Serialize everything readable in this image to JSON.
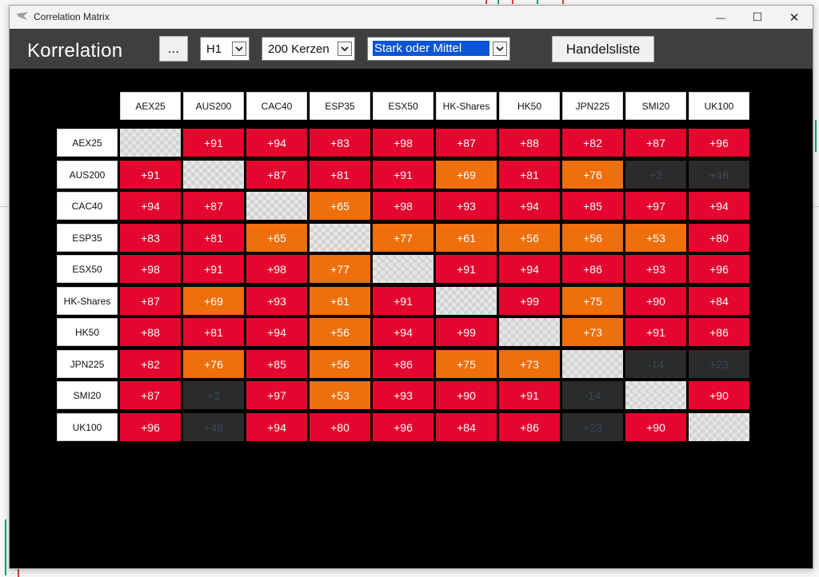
{
  "window": {
    "title": "Correlation Matrix",
    "controls": {
      "minimize": "—",
      "maximize": "☐",
      "close": "✕"
    }
  },
  "toolbar": {
    "title": "Korrelation",
    "more_label": "...",
    "timeframe": {
      "selected": "H1",
      "icon": "chevron-down-icon"
    },
    "candles": {
      "selected": "200 Kerzen",
      "icon": "chevron-down-icon"
    },
    "filter": {
      "selected": "Stark oder Mittel",
      "icon": "chevron-down-icon"
    },
    "trade_list_label": "Handelsliste"
  },
  "matrix": {
    "symbols": [
      "AEX25",
      "AUS200",
      "CAC40",
      "ESP35",
      "ESX50",
      "HK-Shares",
      "HK50",
      "JPN225",
      "SMI20",
      "UK100"
    ],
    "values": [
      [
        "",
        "+91",
        "+94",
        "+83",
        "+98",
        "+87",
        "+88",
        "+82",
        "+87",
        "+96"
      ],
      [
        "+91",
        "",
        "+87",
        "+81",
        "+91",
        "+69",
        "+81",
        "+76",
        "+2",
        "+48"
      ],
      [
        "+94",
        "+87",
        "",
        "+65",
        "+98",
        "+93",
        "+94",
        "+85",
        "+97",
        "+94"
      ],
      [
        "+83",
        "+81",
        "+65",
        "",
        "+77",
        "+61",
        "+56",
        "+56",
        "+53",
        "+80"
      ],
      [
        "+98",
        "+91",
        "+98",
        "+77",
        "",
        "+91",
        "+94",
        "+86",
        "+93",
        "+96"
      ],
      [
        "+87",
        "+69",
        "+93",
        "+61",
        "+91",
        "",
        "+99",
        "+75",
        "+90",
        "+84"
      ],
      [
        "+88",
        "+81",
        "+94",
        "+56",
        "+94",
        "+99",
        "",
        "+73",
        "+91",
        "+86"
      ],
      [
        "+82",
        "+76",
        "+85",
        "+56",
        "+86",
        "+75",
        "+73",
        "",
        "-14",
        "+23"
      ],
      [
        "+87",
        "+2",
        "+97",
        "+53",
        "+93",
        "+90",
        "+91",
        "-14",
        "",
        "+90"
      ],
      [
        "+96",
        "+48",
        "+94",
        "+80",
        "+96",
        "+84",
        "+86",
        "+23",
        "+90",
        ""
      ]
    ],
    "colors": {
      "strong": "#e4062e",
      "medium": "#ef6f0d",
      "weak": "#2b2b2b"
    }
  }
}
